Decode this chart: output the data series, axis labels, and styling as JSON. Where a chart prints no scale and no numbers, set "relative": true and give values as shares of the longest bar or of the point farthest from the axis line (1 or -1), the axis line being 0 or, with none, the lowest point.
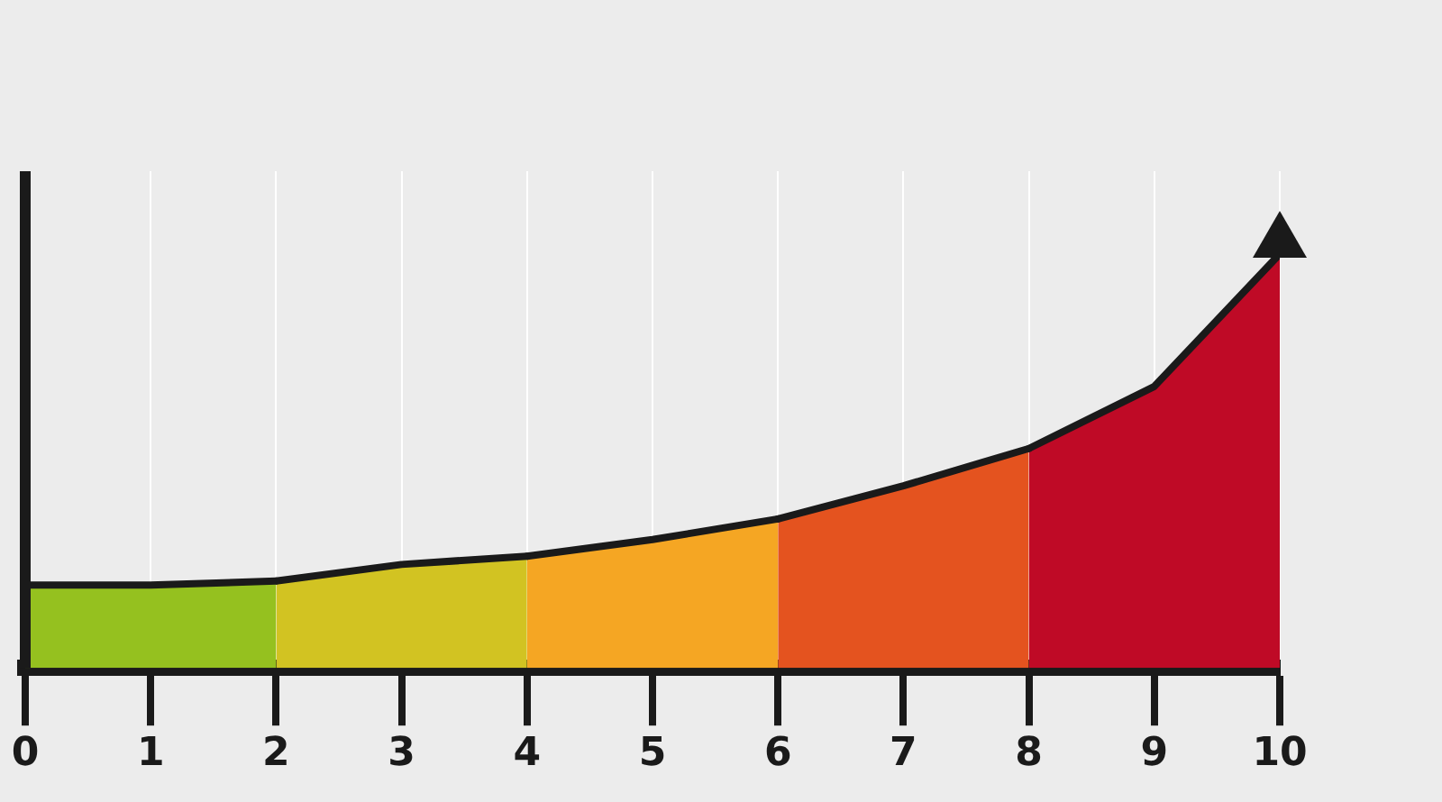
{
  "chart_data": {
    "type": "area",
    "relative": true,
    "tick_labels": "x",
    "grid": "x",
    "legend": false,
    "ref_lines": [
      {
        "axis": "x",
        "value": 0,
        "color": "#1a1a1a"
      }
    ],
    "xlim": [
      0,
      10
    ],
    "xticks": [
      0,
      1,
      2,
      3,
      4,
      5,
      6,
      7,
      8,
      9,
      10
    ],
    "series": [
      {
        "color": "#95c11f",
        "x": [
          0,
          1,
          2
        ],
        "values": [
          0.2,
          0.2,
          0.21
        ]
      },
      {
        "color": "#d2c322",
        "x": [
          2,
          3,
          4
        ],
        "values": [
          0.21,
          0.25,
          0.27
        ]
      },
      {
        "color": "#f5a623",
        "x": [
          4,
          5,
          6
        ],
        "values": [
          0.27,
          0.31,
          0.36
        ]
      },
      {
        "color": "#e4531f",
        "x": [
          6,
          7,
          8
        ],
        "values": [
          0.36,
          0.44,
          0.53
        ]
      },
      {
        "color": "#bf0a26",
        "x": [
          8,
          9,
          10
        ],
        "values": [
          0.53,
          0.68,
          1
        ]
      }
    ]
  }
}
